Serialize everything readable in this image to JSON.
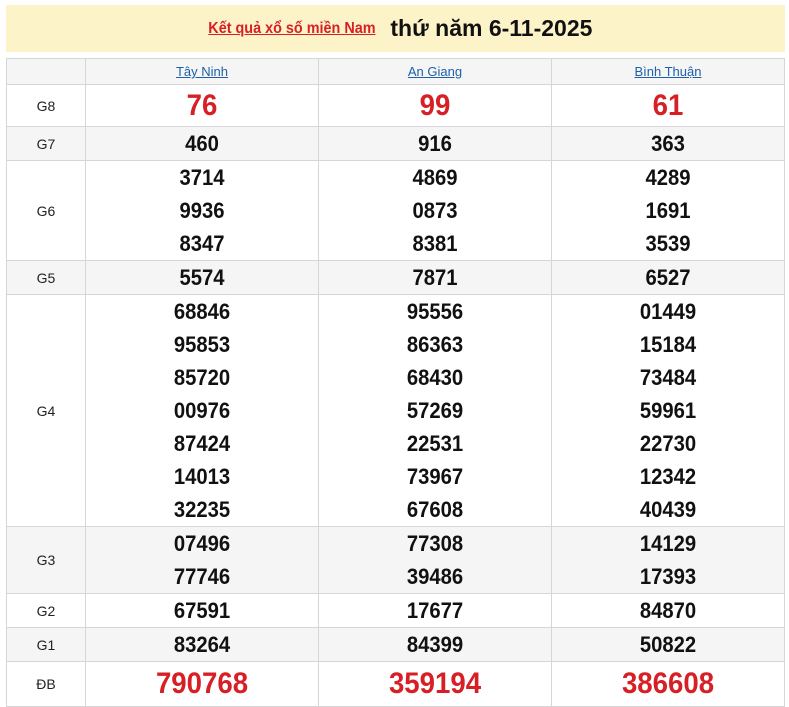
{
  "header": {
    "link_text": "Kết quả xổ số miền Nam",
    "date_text": "thứ năm 6-11-2025"
  },
  "provinces": [
    "Tây Ninh",
    "An Giang",
    "Bình Thuận"
  ],
  "prizes": [
    {
      "label": "G8",
      "values": [
        [
          "76"
        ],
        [
          "99"
        ],
        [
          "61"
        ]
      ]
    },
    {
      "label": "G7",
      "values": [
        [
          "460"
        ],
        [
          "916"
        ],
        [
          "363"
        ]
      ]
    },
    {
      "label": "G6",
      "values": [
        [
          "3714",
          "9936",
          "8347"
        ],
        [
          "4869",
          "0873",
          "8381"
        ],
        [
          "4289",
          "1691",
          "3539"
        ]
      ]
    },
    {
      "label": "G5",
      "values": [
        [
          "5574"
        ],
        [
          "7871"
        ],
        [
          "6527"
        ]
      ]
    },
    {
      "label": "G4",
      "values": [
        [
          "68846",
          "95853",
          "85720",
          "00976",
          "87424",
          "14013",
          "32235"
        ],
        [
          "95556",
          "86363",
          "68430",
          "57269",
          "22531",
          "73967",
          "67608"
        ],
        [
          "01449",
          "15184",
          "73484",
          "59961",
          "22730",
          "12342",
          "40439"
        ]
      ]
    },
    {
      "label": "G3",
      "values": [
        [
          "07496",
          "77746"
        ],
        [
          "77308",
          "39486"
        ],
        [
          "14129",
          "17393"
        ]
      ]
    },
    {
      "label": "G2",
      "values": [
        [
          "67591"
        ],
        [
          "17677"
        ],
        [
          "84870"
        ]
      ]
    },
    {
      "label": "G1",
      "values": [
        [
          "83264"
        ],
        [
          "84399"
        ],
        [
          "50822"
        ]
      ]
    },
    {
      "label": "ĐB",
      "values": [
        [
          "790768"
        ],
        [
          "359194"
        ],
        [
          "386608"
        ]
      ]
    }
  ],
  "colors": {
    "accent_red": "#d71f26",
    "link_blue": "#1d5fa8",
    "banner_bg": "#fdf3c8"
  }
}
